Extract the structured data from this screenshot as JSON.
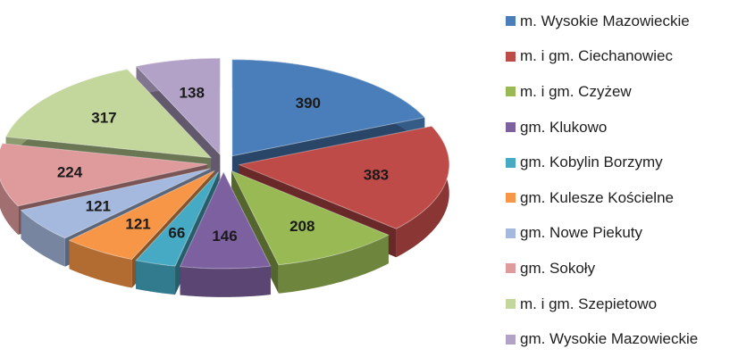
{
  "chart_data": {
    "type": "pie",
    "style": "3d-exploded",
    "legend_position": "right",
    "slices": [
      {
        "label": "m. Wysokie Mazowieckie",
        "value": 390,
        "color": "#4a7ebb"
      },
      {
        "label": "m. i gm. Ciechanowiec",
        "value": 383,
        "color": "#be4b48"
      },
      {
        "label": "m. i gm. Czyżew",
        "value": 208,
        "color": "#98b954"
      },
      {
        "label": "gm. Klukowo",
        "value": 146,
        "color": "#7d60a0"
      },
      {
        "label": "gm. Kobylin Borzymy",
        "value": 66,
        "color": "#46aac5"
      },
      {
        "label": "gm. Kulesze Kościelne",
        "value": 121,
        "color": "#f79646"
      },
      {
        "label": "gm. Nowe Piekuty",
        "value": 121,
        "color": "#a5b9de"
      },
      {
        "label": "gm. Sokoły",
        "value": 224,
        "color": "#df9a9c"
      },
      {
        "label": "m. i gm. Szepietowo",
        "value": 317,
        "color": "#c3d69b"
      },
      {
        "label": "gm. Wysokie Mazowieckie",
        "value": 138,
        "color": "#b3a2c7"
      }
    ]
  }
}
